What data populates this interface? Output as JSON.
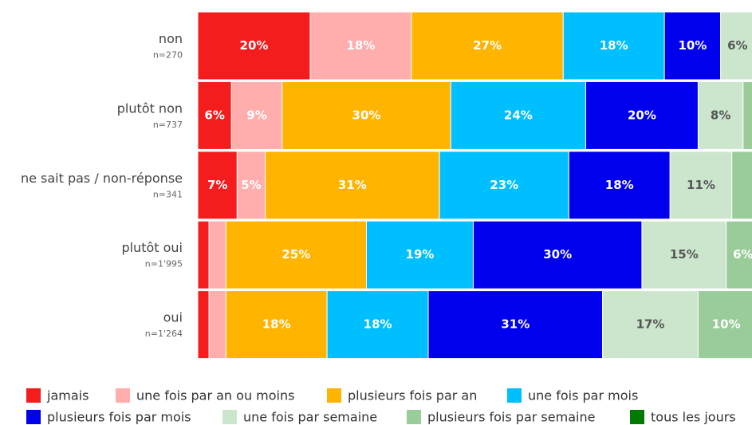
{
  "chart_data": {
    "type": "stacked-bar-horizontal",
    "categories": [
      "non",
      "plutôt non",
      "ne sait pas / non-réponse",
      "plutôt oui",
      "oui"
    ],
    "category_notes": [
      "n=270",
      "n=737",
      "n=341",
      "n=1'995",
      "n=1'264"
    ],
    "xlim": [
      0,
      100
    ],
    "legend": "bottom",
    "series": [
      {
        "name": "jamais",
        "color": "#f41c1c",
        "label_color": "#ffffff",
        "values": [
          20,
          6,
          7,
          2,
          2
        ],
        "value_labels": [
          "20%",
          "6%",
          "7%",
          null,
          null
        ]
      },
      {
        "name": "une fois par an ou moins",
        "color": "#ffadad",
        "label_color": "#ffffff",
        "values": [
          18,
          9,
          5,
          3,
          3
        ],
        "value_labels": [
          "18%",
          "9%",
          "5%",
          null,
          null
        ]
      },
      {
        "name": "plusieurs fois par an",
        "color": "#ffb400",
        "label_color": "#ffffff",
        "values": [
          27,
          30,
          31,
          25,
          18
        ],
        "value_labels": [
          "27%",
          "30%",
          "31%",
          "25%",
          "18%"
        ]
      },
      {
        "name": "une fois par mois",
        "color": "#00bfff",
        "label_color": "#ffffff",
        "values": [
          18,
          24,
          23,
          19,
          18
        ],
        "value_labels": [
          "18%",
          "24%",
          "23%",
          "19%",
          "18%"
        ]
      },
      {
        "name": "plusieurs fois par mois",
        "color": "#0000ee",
        "label_color": "#ffffff",
        "values": [
          10,
          20,
          18,
          30,
          31
        ],
        "value_labels": [
          "10%",
          "20%",
          "18%",
          "30%",
          "31%"
        ]
      },
      {
        "name": "une fois par semaine",
        "color": "#cbe6cd",
        "label_color": "#555555",
        "values": [
          6,
          8,
          11,
          15,
          17
        ],
        "value_labels": [
          "6%",
          "8%",
          "11%",
          "15%",
          "17%"
        ]
      },
      {
        "name": "plusieurs fois par semaine",
        "color": "#99cc99",
        "label_color": "#ffffff",
        "values": [
          1,
          2,
          4,
          6,
          10
        ],
        "value_labels": [
          null,
          null,
          null,
          "6%",
          "10%"
        ]
      },
      {
        "name": "tous les jours",
        "color": "#007a00",
        "label_color": "#ffffff",
        "values": [
          0,
          1,
          1,
          0,
          1
        ],
        "value_labels": [
          null,
          null,
          null,
          null,
          null
        ]
      }
    ]
  }
}
